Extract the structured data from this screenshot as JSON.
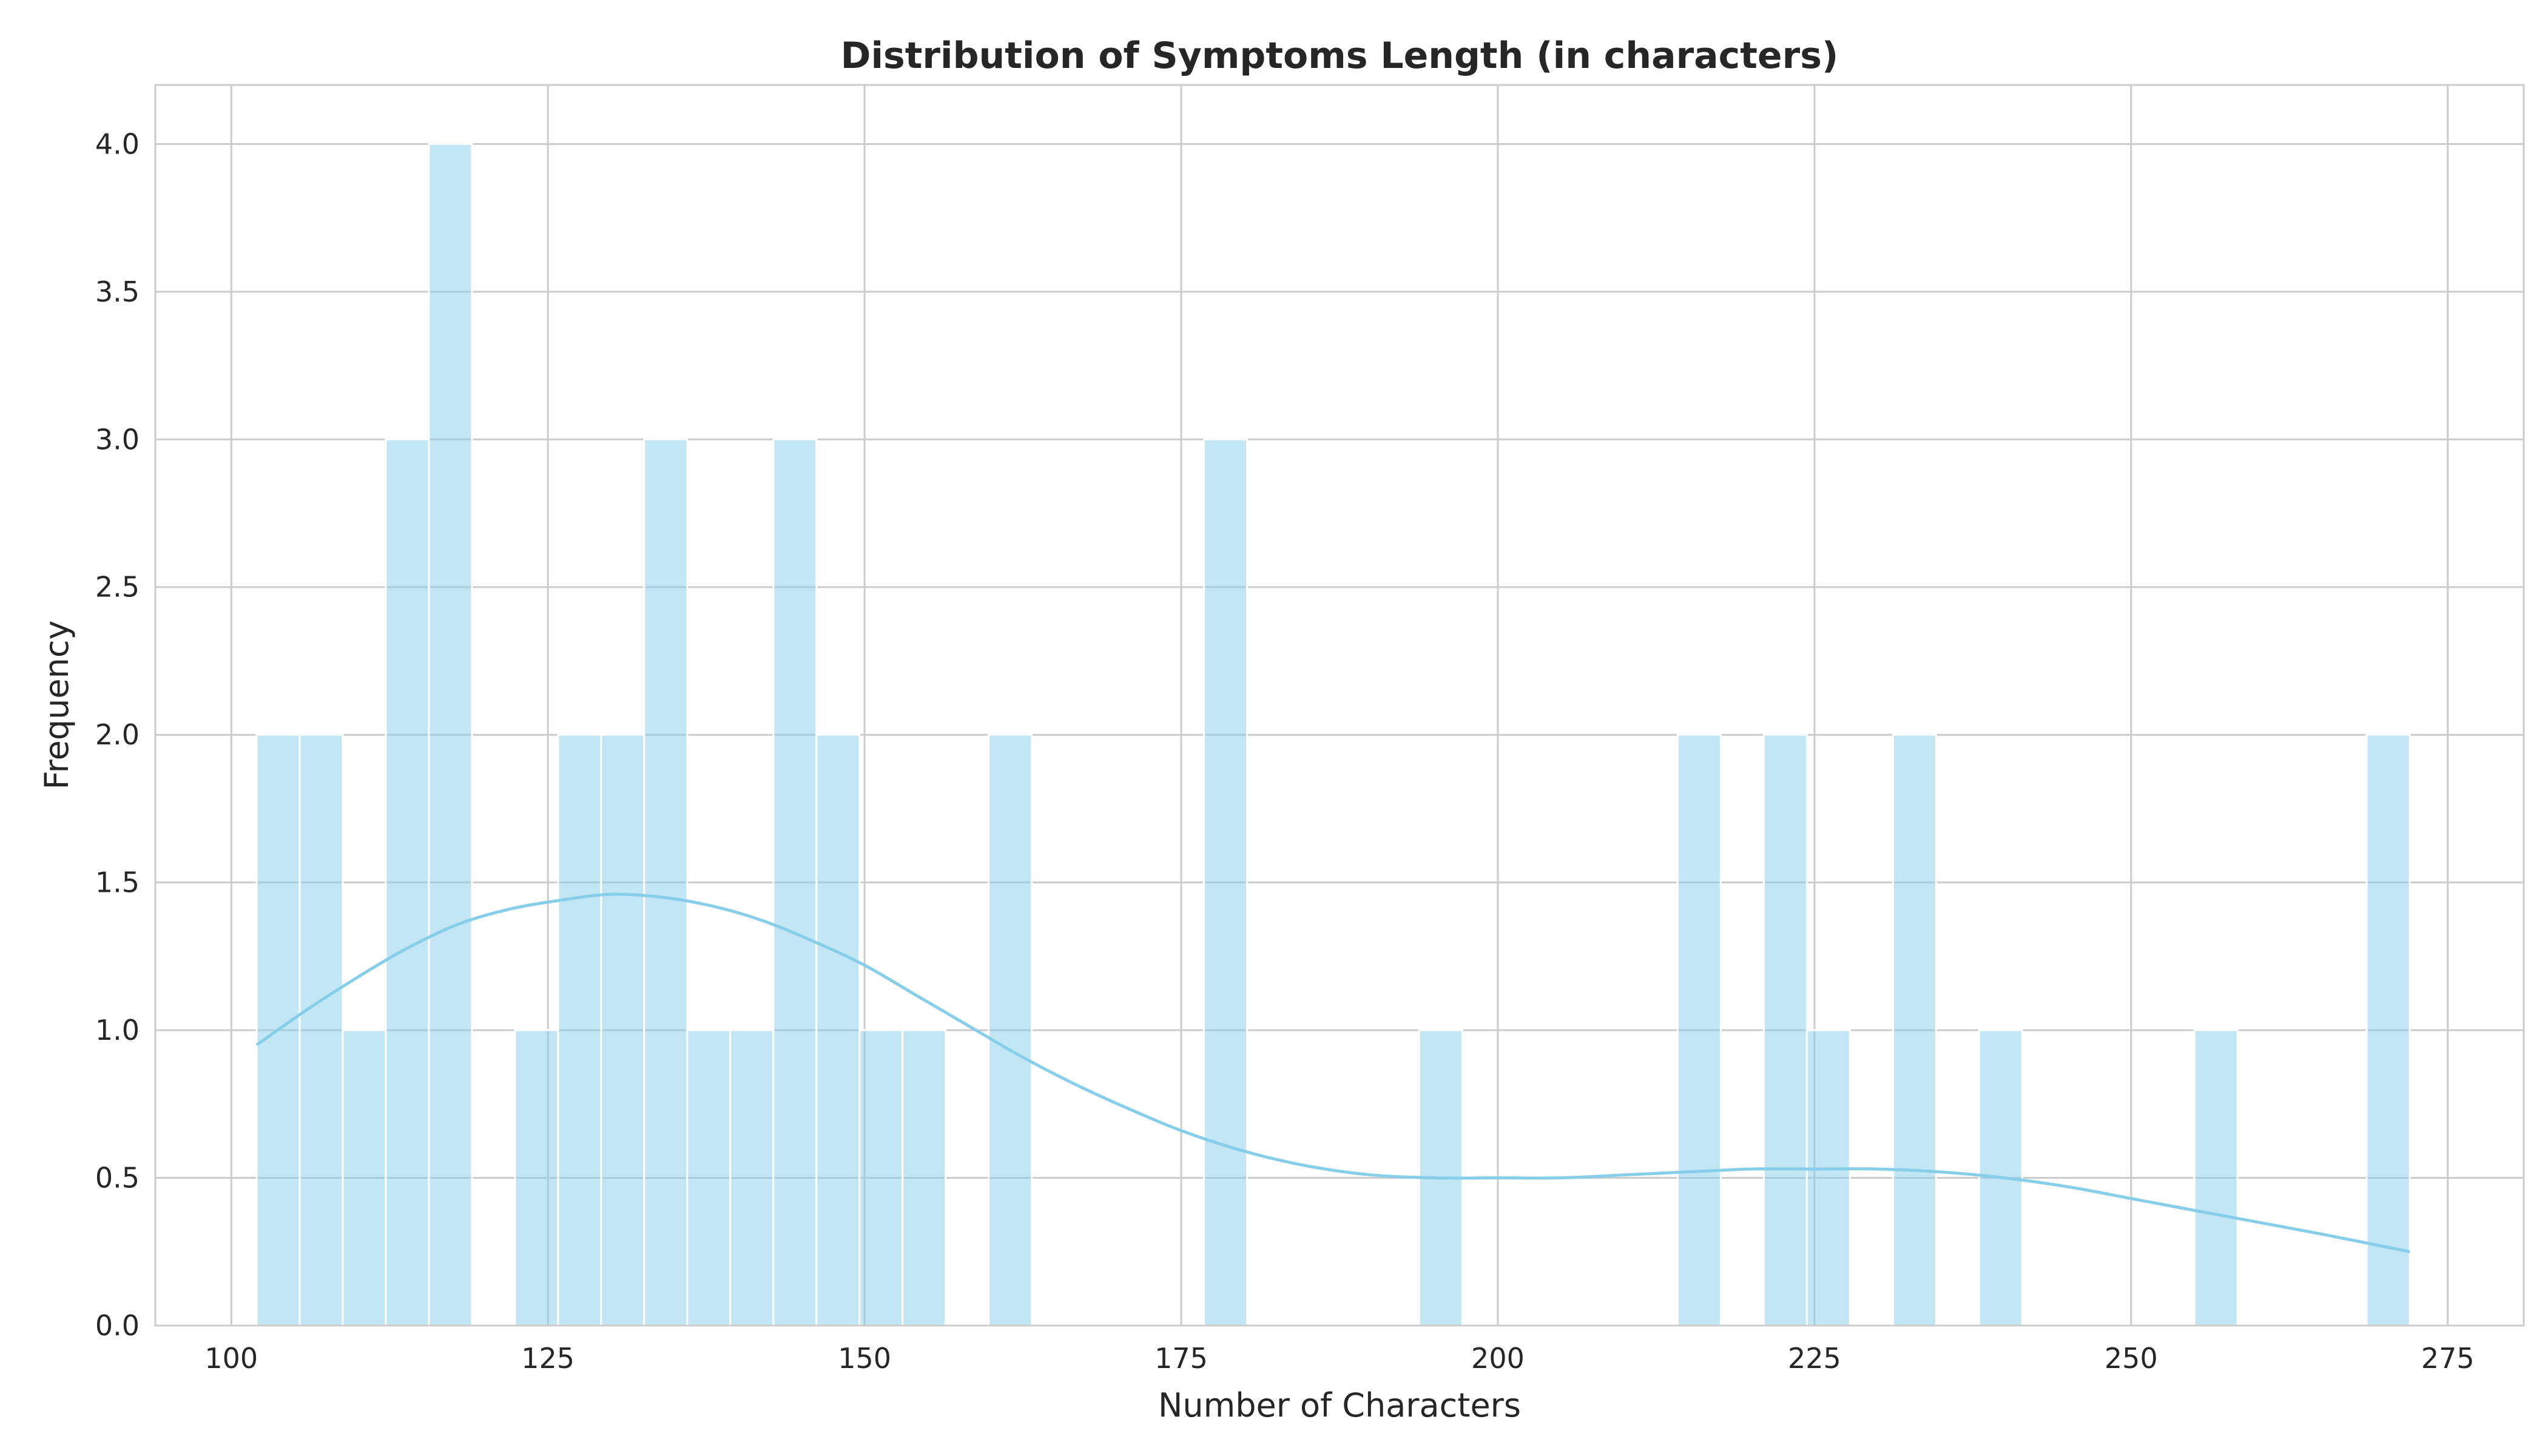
{
  "chart_data": {
    "type": "histogram",
    "title": "Distribution of Symptoms Length (in characters)",
    "xlabel": "Number of Characters",
    "ylabel": "Frequency",
    "xlim": [
      94,
      281
    ],
    "ylim": [
      0,
      4.2
    ],
    "xticks": [
      100,
      125,
      150,
      175,
      200,
      225,
      250,
      275
    ],
    "yticks": [
      0.0,
      0.5,
      1.0,
      1.5,
      2.0,
      2.5,
      3.0,
      3.5,
      4.0
    ],
    "grid": true,
    "bar_color": "#87ceeb",
    "kde_color": "#87ceeb",
    "bin_range": [
      102,
      272
    ],
    "bin_count": 50,
    "bin_counts": [
      2,
      2,
      1,
      3,
      4,
      0,
      1,
      2,
      2,
      3,
      1,
      1,
      3,
      2,
      1,
      1,
      0,
      2,
      0,
      0,
      0,
      0,
      3,
      0,
      0,
      0,
      0,
      1,
      0,
      0,
      0,
      0,
      0,
      2,
      0,
      2,
      1,
      0,
      2,
      0,
      1,
      0,
      0,
      0,
      0,
      1,
      0,
      0,
      0,
      2
    ],
    "kde": {
      "x": [
        102,
        106,
        110,
        114,
        118,
        122,
        126,
        130,
        134,
        138,
        142,
        146,
        150,
        154,
        158,
        162,
        166,
        170,
        175,
        180,
        185,
        190,
        195,
        200,
        205,
        210,
        215,
        220,
        225,
        230,
        235,
        240,
        245,
        250,
        255,
        260,
        265,
        272
      ],
      "y": [
        0.95,
        1.07,
        1.18,
        1.28,
        1.36,
        1.41,
        1.44,
        1.46,
        1.45,
        1.42,
        1.37,
        1.3,
        1.22,
        1.12,
        1.02,
        0.92,
        0.83,
        0.75,
        0.66,
        0.59,
        0.54,
        0.51,
        0.5,
        0.5,
        0.5,
        0.51,
        0.52,
        0.53,
        0.53,
        0.53,
        0.52,
        0.5,
        0.47,
        0.43,
        0.39,
        0.35,
        0.31,
        0.25
      ]
    }
  }
}
